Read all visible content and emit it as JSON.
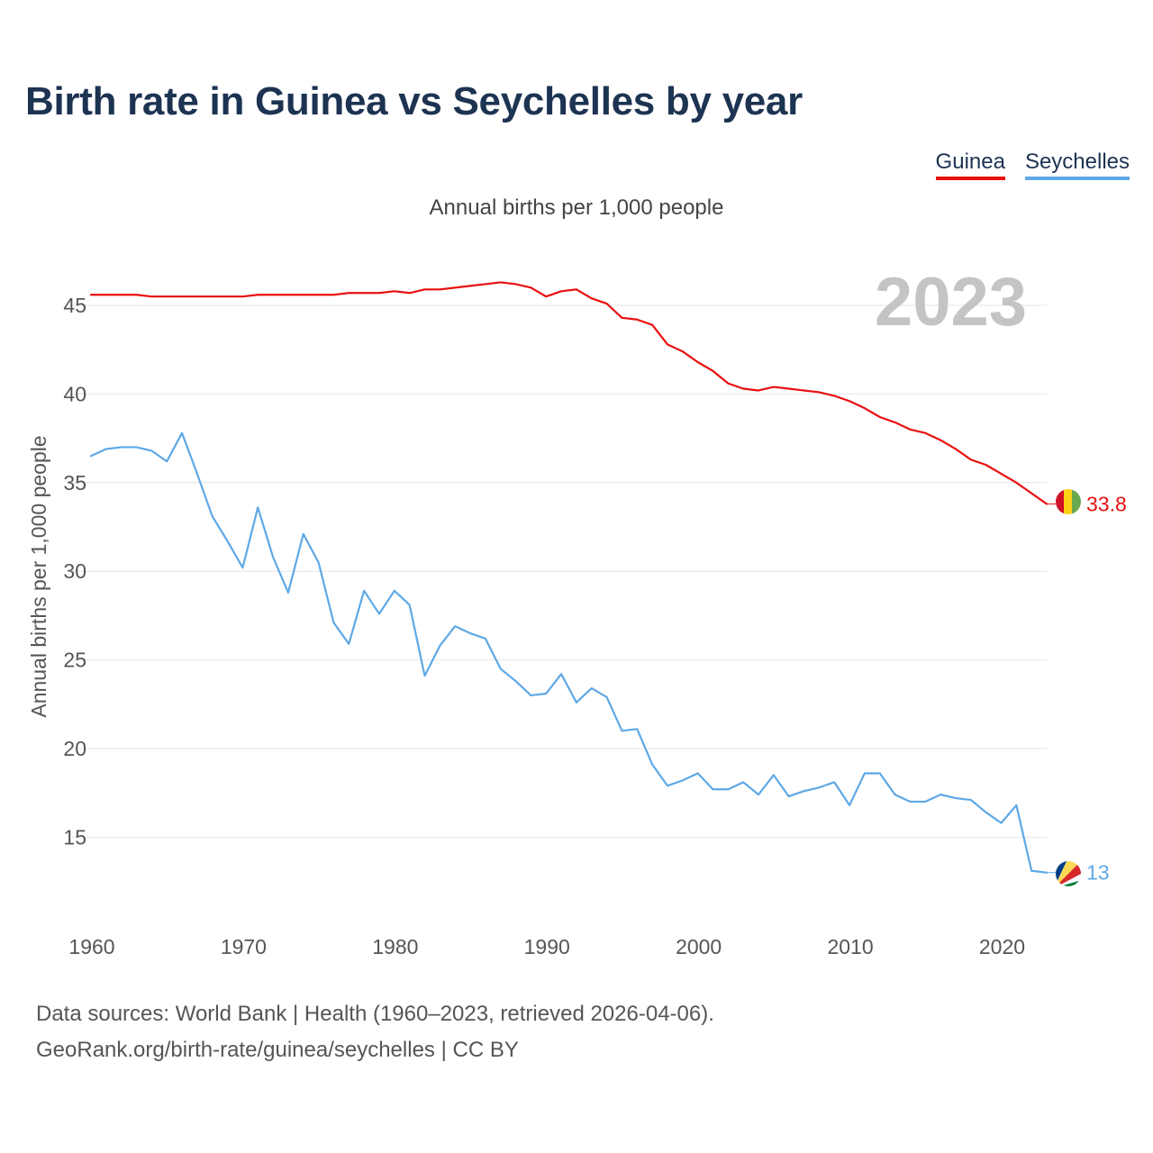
{
  "title": "Birth rate in Guinea vs Seychelles by year",
  "subtitle": "Annual births per 1,000 people",
  "year_label": "2023",
  "source_line1": "Data sources: World Bank | Health (1960–2023, retrieved 2026-04-06).",
  "source_line2": "GeoRank.org/birth-rate/guinea/seychelles | CC BY",
  "chart_data": {
    "type": "line",
    "title": "Birth rate in Guinea vs Seychelles by year",
    "subtitle": "Annual births per 1,000 people",
    "xlabel": "",
    "ylabel": "Annual births per 1,000 people",
    "xlim": [
      1960,
      2023
    ],
    "ylim": [
      10.8,
      48
    ],
    "yticks": [
      15,
      20,
      25,
      30,
      35,
      40,
      45
    ],
    "xticks": [
      1960,
      1970,
      1980,
      1990,
      2000,
      2010,
      2020
    ],
    "grid": true,
    "legend": "top-right",
    "x": [
      1960,
      1961,
      1962,
      1963,
      1964,
      1965,
      1966,
      1967,
      1968,
      1969,
      1970,
      1971,
      1972,
      1973,
      1974,
      1975,
      1976,
      1977,
      1978,
      1979,
      1980,
      1981,
      1982,
      1983,
      1984,
      1985,
      1986,
      1987,
      1988,
      1989,
      1990,
      1991,
      1992,
      1993,
      1994,
      1995,
      1996,
      1997,
      1998,
      1999,
      2000,
      2001,
      2002,
      2003,
      2004,
      2005,
      2006,
      2007,
      2008,
      2009,
      2010,
      2011,
      2012,
      2013,
      2014,
      2015,
      2016,
      2017,
      2018,
      2019,
      2020,
      2021,
      2022,
      2023
    ],
    "series": [
      {
        "name": "Guinea",
        "color": "#e8100f",
        "end_label": "33.8",
        "values": [
          45.6,
          45.6,
          45.6,
          45.6,
          45.5,
          45.5,
          45.5,
          45.5,
          45.5,
          45.5,
          45.5,
          45.6,
          45.6,
          45.6,
          45.6,
          45.6,
          45.6,
          45.7,
          45.7,
          45.7,
          45.8,
          45.7,
          45.9,
          45.9,
          46.0,
          46.1,
          46.2,
          46.3,
          46.2,
          46.0,
          45.5,
          45.8,
          45.9,
          45.4,
          45.1,
          44.3,
          44.2,
          43.9,
          42.8,
          42.4,
          41.8,
          41.3,
          40.6,
          40.3,
          40.2,
          40.4,
          40.3,
          40.2,
          40.1,
          39.9,
          39.6,
          39.2,
          38.7,
          38.4,
          38.0,
          37.8,
          37.4,
          36.9,
          36.3,
          36.0,
          35.5,
          35.0,
          34.4,
          33.8
        ]
      },
      {
        "name": "Seychelles",
        "color": "#5ea8e6",
        "end_label": "13",
        "values": [
          36.5,
          36.9,
          37.0,
          37.0,
          36.8,
          36.2,
          37.8,
          35.5,
          33.1,
          31.7,
          30.2,
          33.6,
          30.8,
          28.8,
          32.1,
          30.5,
          27.1,
          25.9,
          28.9,
          27.6,
          28.9,
          28.1,
          24.1,
          25.8,
          26.9,
          26.5,
          26.2,
          24.5,
          23.8,
          23.0,
          23.1,
          24.2,
          22.6,
          23.4,
          22.9,
          21.0,
          21.1,
          19.1,
          17.9,
          18.2,
          18.6,
          17.7,
          17.7,
          18.1,
          17.4,
          18.5,
          17.3,
          17.6,
          17.8,
          18.1,
          16.8,
          18.6,
          18.6,
          17.4,
          17.0,
          17.0,
          17.4,
          17.2,
          17.1,
          16.4,
          15.8,
          16.8,
          13.1,
          13.0
        ]
      }
    ]
  }
}
